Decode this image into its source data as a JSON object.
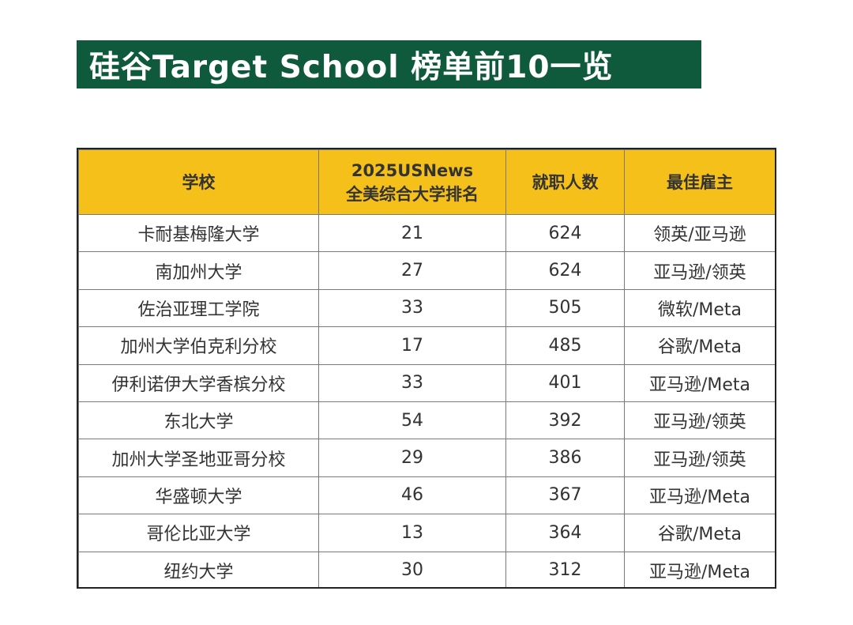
{
  "title": "硅谷Target School 榜单前10一览",
  "colors": {
    "banner": "#0f5a3c",
    "header_bg": "#f5c01a"
  },
  "table": {
    "headers": {
      "school": "学校",
      "rank_line1": "2025USNews",
      "rank_line2": "全美综合大学排名",
      "employees": "就职人数",
      "employer": "最佳雇主"
    },
    "rows": [
      {
        "school": "卡耐基梅隆大学",
        "rank": "21",
        "employees": "624",
        "employer": "领英/亚马逊"
      },
      {
        "school": "南加州大学",
        "rank": "27",
        "employees": "624",
        "employer": "亚马逊/领英"
      },
      {
        "school": "佐治亚理工学院",
        "rank": "33",
        "employees": "505",
        "employer": "微软/Meta"
      },
      {
        "school": "加州大学伯克利分校",
        "rank": "17",
        "employees": "485",
        "employer": "谷歌/Meta"
      },
      {
        "school": "伊利诺伊大学香槟分校",
        "rank": "33",
        "employees": "401",
        "employer": "亚马逊/Meta"
      },
      {
        "school": "东北大学",
        "rank": "54",
        "employees": "392",
        "employer": "亚马逊/领英"
      },
      {
        "school": "加州大学圣地亚哥分校",
        "rank": "29",
        "employees": "386",
        "employer": "亚马逊/领英"
      },
      {
        "school": "华盛顿大学",
        "rank": "46",
        "employees": "367",
        "employer": "亚马逊/Meta"
      },
      {
        "school": "哥伦比亚大学",
        "rank": "13",
        "employees": "364",
        "employer": "谷歌/Meta"
      },
      {
        "school": "纽约大学",
        "rank": "30",
        "employees": "312",
        "employer": "亚马逊/Meta"
      }
    ]
  }
}
